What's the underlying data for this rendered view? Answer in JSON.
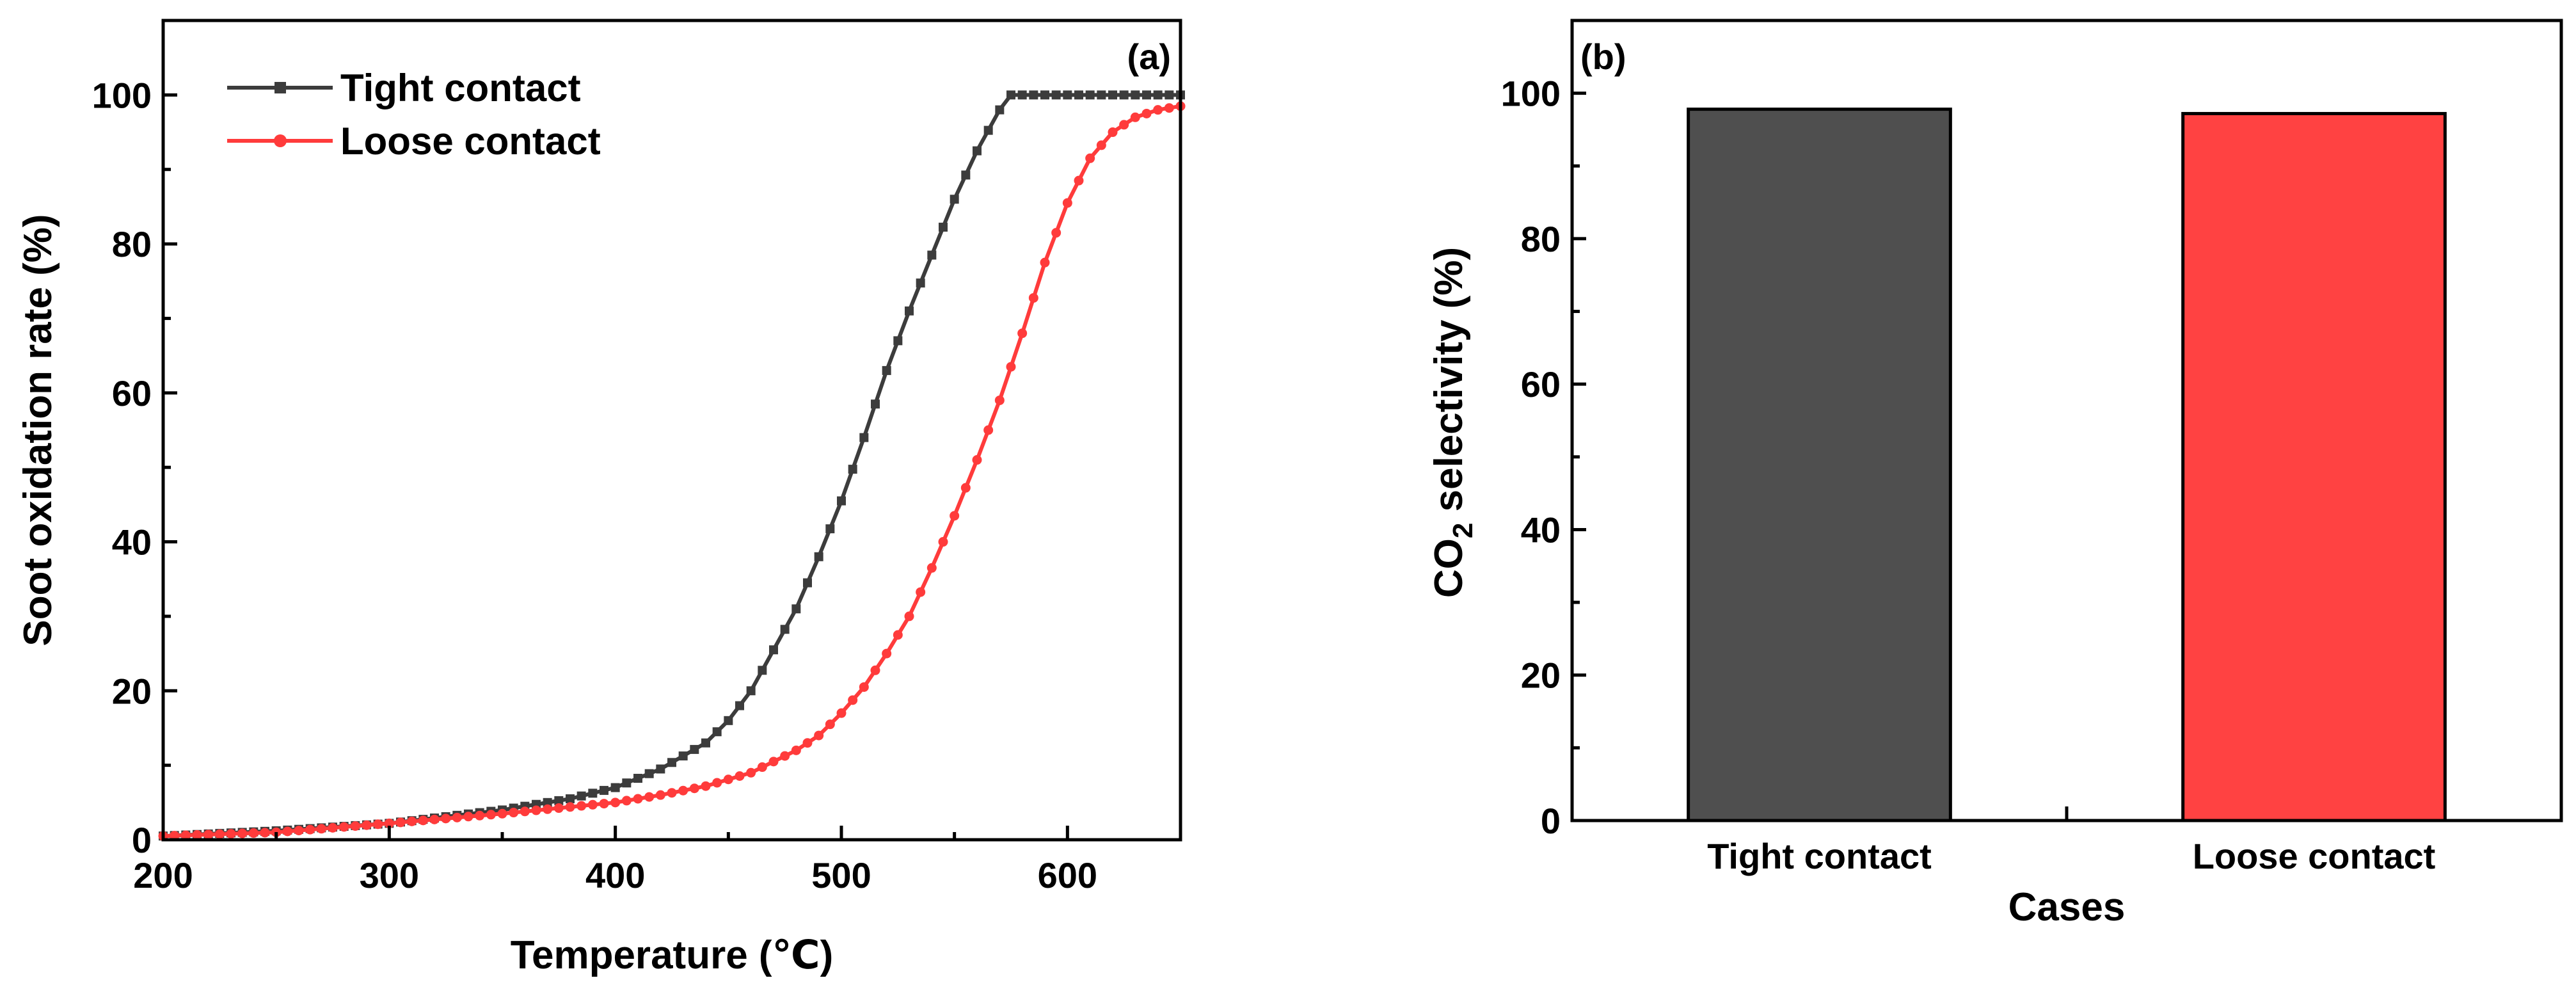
{
  "chart_data": [
    {
      "panel_label": "(a)",
      "type": "line",
      "xlabel": "Temperature (℃)",
      "ylabel": "Soot oxidation rate (%)",
      "xlim": [
        200,
        650
      ],
      "ylim": [
        0,
        110
      ],
      "xticks": [
        200,
        300,
        400,
        500,
        600
      ],
      "yticks": [
        0,
        20,
        40,
        60,
        80,
        100
      ],
      "legend_position": "top-left",
      "series": [
        {
          "name": "Tight contact",
          "color": "#3c3c3c",
          "marker": "square",
          "x": [
            200,
            250,
            300,
            350,
            380,
            400,
            420,
            440,
            450,
            460,
            470,
            480,
            490,
            500,
            510,
            520,
            530,
            540,
            550,
            560,
            570,
            575,
            580,
            600,
            620,
            650
          ],
          "y": [
            0.5,
            1.2,
            2.2,
            4.0,
            5.5,
            7.0,
            9.5,
            13.0,
            16.0,
            20.0,
            25.5,
            31.0,
            38.0,
            45.5,
            54.0,
            63.0,
            71.0,
            78.5,
            86.0,
            92.5,
            98.0,
            100,
            100,
            100,
            100,
            100
          ]
        },
        {
          "name": "Loose contact",
          "color": "#ff3b3b",
          "marker": "circle",
          "x": [
            200,
            250,
            300,
            350,
            400,
            420,
            440,
            460,
            480,
            490,
            500,
            510,
            520,
            530,
            540,
            550,
            560,
            570,
            580,
            590,
            600,
            610,
            620,
            630,
            640,
            650
          ],
          "y": [
            0.5,
            1.0,
            2.2,
            3.5,
            5.0,
            6.0,
            7.2,
            9.0,
            12.0,
            14.0,
            17.0,
            20.5,
            25.0,
            30.0,
            36.5,
            43.5,
            51.0,
            59.0,
            68.0,
            77.5,
            85.5,
            91.5,
            95.0,
            97.0,
            98.0,
            98.5
          ]
        }
      ]
    },
    {
      "panel_label": "(b)",
      "type": "bar",
      "xlabel": "Cases",
      "ylabel_main": "CO",
      "ylabel_sub": "2",
      "ylabel_rest": " selectivity (%)",
      "categories": [
        "Tight contact",
        "Loose contact"
      ],
      "values": [
        97.8,
        97.2
      ],
      "colors": [
        "#4f4f4f",
        "#ff4242"
      ],
      "ylim": [
        0,
        110
      ],
      "yticks": [
        0,
        20,
        40,
        60,
        80,
        100
      ]
    }
  ]
}
